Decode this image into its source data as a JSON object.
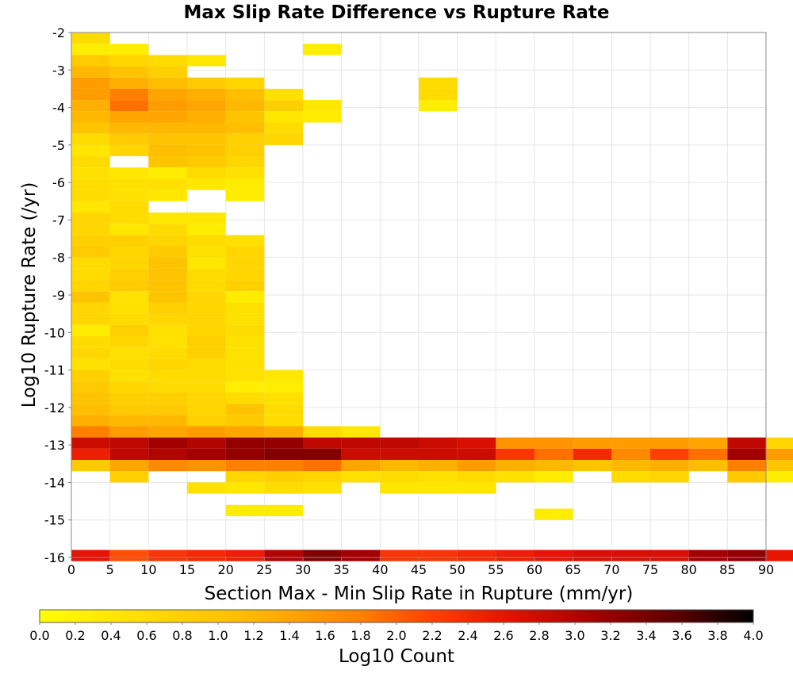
{
  "chart_data": {
    "type": "heatmap",
    "title": "Max Slip Rate Difference vs Rupture Rate",
    "xlabel": "Section Max - Min Slip Rate in Rupture (mm/yr)",
    "ylabel": "Log10 Rupture Rate (/yr)",
    "xlim": [
      0,
      90
    ],
    "ylim": [
      -16,
      -2
    ],
    "x_ticks": [
      "0",
      "5",
      "10",
      "15",
      "20",
      "25",
      "30",
      "35",
      "40",
      "45",
      "50",
      "55",
      "60",
      "65",
      "70",
      "75",
      "80",
      "85",
      "90"
    ],
    "y_ticks": [
      "-2",
      "-3",
      "-4",
      "-5",
      "-6",
      "-7",
      "-8",
      "-9",
      "-10",
      "-11",
      "-12",
      "-13",
      "-14",
      "-15",
      "-16"
    ],
    "grid": true,
    "x_bin_width": 5,
    "y_bin_width": 0.3,
    "colorbar": {
      "label": "Log10 Count",
      "range": [
        0.0,
        4.0
      ],
      "ticks": [
        "0.0",
        "0.2",
        "0.4",
        "0.6",
        "0.8",
        "1.0",
        "1.2",
        "1.4",
        "1.6",
        "1.8",
        "2.0",
        "2.2",
        "2.4",
        "2.6",
        "2.8",
        "3.0",
        "3.2",
        "3.4",
        "3.6",
        "3.8",
        "4.0"
      ],
      "stops": [
        [
          0.0,
          "#ffff00"
        ],
        [
          0.3,
          "#ffb800"
        ],
        [
          0.45,
          "#ff8000"
        ],
        [
          0.55,
          "#ff4000"
        ],
        [
          0.65,
          "#e61400"
        ],
        [
          0.78,
          "#a00000"
        ],
        [
          0.9,
          "#550000"
        ],
        [
          1.0,
          "#000000"
        ]
      ]
    },
    "rows": [
      {
        "y": -2.15,
        "values": [
          0.6
        ]
      },
      {
        "y": -2.45,
        "values": [
          0.3,
          0.3,
          null,
          null,
          null,
          null,
          0.3
        ]
      },
      {
        "y": -2.75,
        "values": [
          0.9,
          0.7,
          0.6,
          0.4
        ]
      },
      {
        "y": -3.05,
        "values": [
          1.2,
          1.0,
          0.8
        ]
      },
      {
        "y": -3.35,
        "values": [
          1.5,
          1.3,
          1.1,
          0.9,
          0.7,
          null,
          null,
          null,
          null,
          0.6
        ]
      },
      {
        "y": -3.65,
        "values": [
          1.5,
          1.8,
          1.4,
          1.3,
          1.1,
          0.5,
          null,
          null,
          null,
          0.6
        ]
      },
      {
        "y": -3.95,
        "values": [
          1.3,
          1.9,
          1.5,
          1.4,
          1.2,
          0.8,
          0.4,
          null,
          null,
          0.3
        ]
      },
      {
        "y": -4.25,
        "values": [
          1.2,
          1.4,
          1.4,
          1.3,
          1.0,
          0.4,
          0.3
        ]
      },
      {
        "y": -4.55,
        "values": [
          1.0,
          1.2,
          1.2,
          1.2,
          1.1,
          0.6
        ]
      },
      {
        "y": -4.85,
        "values": [
          0.6,
          0.9,
          1.0,
          1.0,
          0.8,
          0.7
        ]
      },
      {
        "y": -5.15,
        "values": [
          0.4,
          0.7,
          1.1,
          1.0,
          0.8
        ]
      },
      {
        "y": -5.45,
        "values": [
          0.6,
          null,
          1.0,
          0.9,
          0.7
        ]
      },
      {
        "y": -5.75,
        "values": [
          0.5,
          0.4,
          0.3,
          0.6,
          0.5
        ]
      },
      {
        "y": -6.05,
        "values": [
          0.6,
          0.5,
          0.5,
          0.4,
          0.3
        ]
      },
      {
        "y": -6.35,
        "values": [
          0.6,
          0.5,
          0.4,
          null,
          0.3
        ]
      },
      {
        "y": -6.65,
        "values": [
          0.4,
          0.6
        ]
      },
      {
        "y": -6.95,
        "values": [
          0.7,
          0.6,
          0.4,
          0.4
        ]
      },
      {
        "y": -7.25,
        "values": [
          0.7,
          0.4,
          0.6,
          0.3
        ]
      },
      {
        "y": -7.55,
        "values": [
          0.8,
          0.8,
          0.7,
          0.6,
          0.5
        ]
      },
      {
        "y": -7.85,
        "values": [
          0.9,
          0.7,
          0.9,
          0.5,
          0.7
        ]
      },
      {
        "y": -8.15,
        "values": [
          0.6,
          0.7,
          1.0,
          0.4,
          0.7
        ]
      },
      {
        "y": -8.45,
        "values": [
          0.6,
          0.8,
          1.0,
          0.6,
          0.7
        ]
      },
      {
        "y": -8.75,
        "values": [
          0.7,
          0.9,
          1.0,
          0.6,
          0.8
        ]
      },
      {
        "y": -9.05,
        "values": [
          1.0,
          0.5,
          1.0,
          0.7,
          0.3
        ]
      },
      {
        "y": -9.35,
        "values": [
          0.7,
          0.5,
          0.8,
          0.7,
          0.5
        ]
      },
      {
        "y": -9.65,
        "values": [
          0.7,
          0.6,
          0.7,
          0.7,
          0.5
        ]
      },
      {
        "y": -9.95,
        "values": [
          0.3,
          0.8,
          0.5,
          0.7,
          0.6
        ]
      },
      {
        "y": -10.25,
        "values": [
          0.6,
          0.7,
          0.5,
          0.8,
          0.5
        ]
      },
      {
        "y": -10.55,
        "values": [
          0.7,
          0.5,
          0.6,
          0.8,
          0.5
        ]
      },
      {
        "y": -10.85,
        "values": [
          0.5,
          0.6,
          0.7,
          0.6,
          0.5
        ]
      },
      {
        "y": -11.15,
        "values": [
          0.8,
          0.5,
          0.6,
          0.6,
          0.5,
          0.4
        ]
      },
      {
        "y": -11.45,
        "values": [
          0.9,
          0.7,
          0.6,
          0.6,
          0.3,
          0.3
        ]
      },
      {
        "y": -11.75,
        "values": [
          1.0,
          0.8,
          0.8,
          0.7,
          0.6,
          0.5
        ]
      },
      {
        "y": -12.05,
        "values": [
          1.1,
          0.9,
          0.9,
          0.7,
          1.0,
          0.6
        ]
      },
      {
        "y": -12.35,
        "values": [
          1.3,
          1.2,
          1.2,
          0.8,
          0.9,
          0.6
        ]
      },
      {
        "y": -12.65,
        "values": [
          1.8,
          1.5,
          1.4,
          1.5,
          1.4,
          1.3,
          0.6,
          0.4
        ]
      },
      {
        "y": -12.95,
        "values": [
          2.8,
          2.9,
          3.1,
          3.0,
          3.2,
          3.2,
          2.9,
          2.9,
          2.9,
          2.8,
          2.7,
          1.6,
          1.6,
          1.5,
          1.5,
          1.5,
          1.4,
          2.9,
          0.7
        ]
      },
      {
        "y": -13.25,
        "values": [
          2.5,
          2.9,
          3.0,
          3.1,
          3.2,
          3.3,
          3.3,
          2.8,
          2.8,
          2.8,
          2.8,
          2.3,
          1.9,
          2.4,
          1.7,
          2.2,
          1.9,
          3.1,
          1.5
        ]
      },
      {
        "y": -13.55,
        "values": [
          0.9,
          1.4,
          1.7,
          1.6,
          1.8,
          1.8,
          1.9,
          1.4,
          1.2,
          1.3,
          1.5,
          1.3,
          1.2,
          1.0,
          1.2,
          1.3,
          1.1,
          1.8,
          1.0
        ]
      },
      {
        "y": -13.85,
        "values": [
          null,
          0.8,
          null,
          null,
          0.7,
          0.8,
          0.7,
          0.5,
          0.6,
          0.5,
          0.6,
          0.5,
          0.3,
          null,
          0.6,
          0.7,
          null,
          0.9,
          0.3
        ]
      },
      {
        "y": -14.15,
        "values": [
          null,
          null,
          null,
          0.5,
          0.4,
          0.6,
          0.5,
          null,
          0.4,
          0.4,
          0.4
        ]
      },
      {
        "y": -14.75,
        "values": [
          null,
          null,
          null,
          null,
          0.3,
          0.3
        ]
      },
      {
        "y": -14.85,
        "values": [
          null,
          null,
          null,
          null,
          null,
          null,
          null,
          null,
          null,
          null,
          null,
          null,
          0.3
        ]
      },
      {
        "y": -15.95,
        "values": [
          2.6,
          2.1,
          2.3,
          2.4,
          2.5,
          3.0,
          3.3,
          3.1,
          2.3,
          2.3,
          2.4,
          2.5,
          2.6,
          2.7,
          2.7,
          2.7,
          3.1,
          3.2,
          2.6
        ]
      }
    ]
  }
}
